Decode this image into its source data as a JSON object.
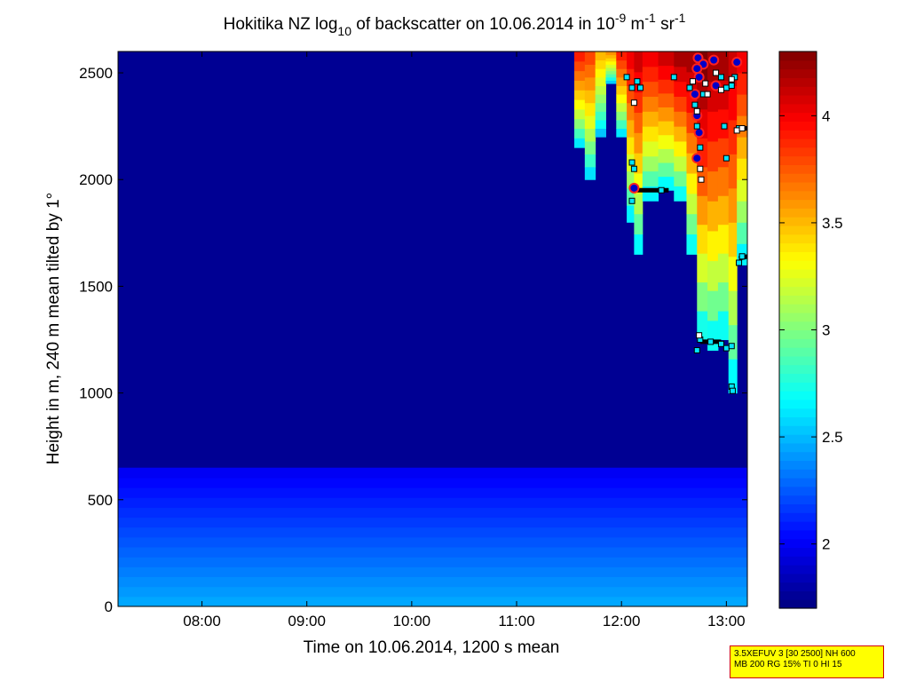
{
  "chart_data": {
    "type": "heatmap",
    "title": "Hokitika NZ log",
    "title_sub": "10",
    "title_rest": " of backscatter on 10.06.2014 in 10",
    "title_exp1": "-9",
    "title_unit1": " m",
    "title_exp2": "-1",
    "title_unit2": " sr",
    "title_exp3": "-1",
    "xlabel": "Time on 10.06.2014, 1200 s mean",
    "ylabel": "Height in m, 240 m mean tilted by 1°",
    "x_ticks": [
      "08:00",
      "09:00",
      "10:00",
      "11:00",
      "12:00",
      "13:00"
    ],
    "x_tick_hours": [
      8,
      9,
      10,
      11,
      12,
      13
    ],
    "xlim_hours": [
      7.2,
      13.2
    ],
    "y_ticks": [
      "0",
      "500",
      "1000",
      "1500",
      "2000",
      "2500"
    ],
    "y_tick_values": [
      0,
      500,
      1000,
      1500,
      2000,
      2500
    ],
    "ylim": [
      0,
      2600
    ],
    "colorbar": {
      "ticks": [
        "2",
        "2.5",
        "3",
        "3.5",
        "4"
      ],
      "tick_values": [
        2,
        2.5,
        3,
        3.5,
        4
      ],
      "range": [
        1.7,
        4.3
      ],
      "colormap": "jet"
    },
    "field": {
      "background_value": 1.75,
      "surface_layer": {
        "top_m": 650,
        "value_bottom": 2.45,
        "value_top": 2.0
      },
      "cloud_base_hour": 11.45,
      "cloud_columns": [
        {
          "hour": 11.45,
          "base_m": 2600,
          "top_value": 3.6
        },
        {
          "hour": 11.55,
          "base_m": 2150,
          "top_value": 3.9
        },
        {
          "hour": 11.65,
          "base_m": 2000,
          "top_value": 3.8
        },
        {
          "hour": 11.75,
          "base_m": 2200,
          "top_value": 3.5
        },
        {
          "hour": 11.85,
          "base_m": 2450,
          "top_value": 3.6
        },
        {
          "hour": 11.95,
          "base_m": 2200,
          "top_value": 3.9
        },
        {
          "hour": 12.05,
          "base_m": 1800,
          "top_value": 4.0
        },
        {
          "hour": 12.12,
          "base_m": 1650,
          "top_value": 4.1
        },
        {
          "hour": 12.2,
          "base_m": 1900,
          "top_value": 4.0
        },
        {
          "hour": 12.35,
          "base_m": 1950,
          "top_value": 4.1
        },
        {
          "hour": 12.5,
          "base_m": 1900,
          "top_value": 4.2
        },
        {
          "hour": 12.62,
          "base_m": 1650,
          "top_value": 4.2
        },
        {
          "hour": 12.72,
          "base_m": 1250,
          "top_value": 4.3
        },
        {
          "hour": 12.82,
          "base_m": 1200,
          "top_value": 4.2
        },
        {
          "hour": 12.92,
          "base_m": 1250,
          "top_value": 4.2
        },
        {
          "hour": 13.02,
          "base_m": 1000,
          "top_value": 4.1
        },
        {
          "hour": 13.1,
          "base_m": 1600,
          "top_value": 4.0
        },
        {
          "hour": 13.2,
          "base_m": 1650,
          "top_value": 3.9
        }
      ]
    },
    "markers": {
      "cyan_squares": [
        [
          12.05,
          2480
        ],
        [
          12.1,
          2430
        ],
        [
          12.15,
          2460
        ],
        [
          12.18,
          2430
        ],
        [
          12.1,
          2080
        ],
        [
          12.12,
          2050
        ],
        [
          12.1,
          1900
        ],
        [
          12.5,
          2480
        ],
        [
          12.65,
          2430
        ],
        [
          12.7,
          2350
        ],
        [
          12.72,
          2250
        ],
        [
          12.75,
          2150
        ],
        [
          12.78,
          2400
        ],
        [
          12.95,
          2480
        ],
        [
          13.0,
          2430
        ],
        [
          13.05,
          2440
        ],
        [
          13.08,
          2480
        ],
        [
          12.98,
          2250
        ],
        [
          13.0,
          2100
        ],
        [
          13.12,
          2240
        ],
        [
          13.15,
          1640
        ],
        [
          13.12,
          1610
        ],
        [
          12.72,
          1200
        ],
        [
          12.75,
          1250
        ],
        [
          12.85,
          1240
        ],
        [
          12.95,
          1230
        ],
        [
          13.0,
          1210
        ],
        [
          13.05,
          1220
        ],
        [
          13.05,
          1030
        ],
        [
          13.06,
          1010
        ],
        [
          12.38,
          1950
        ]
      ],
      "white_squares": [
        [
          12.12,
          2360
        ],
        [
          12.68,
          2460
        ],
        [
          12.72,
          2320
        ],
        [
          12.75,
          2050
        ],
        [
          12.76,
          2000
        ],
        [
          12.8,
          2450
        ],
        [
          12.82,
          2400
        ],
        [
          12.9,
          2500
        ],
        [
          12.95,
          2420
        ],
        [
          13.05,
          2470
        ],
        [
          13.1,
          2230
        ],
        [
          13.15,
          2240
        ],
        [
          12.74,
          1270
        ]
      ],
      "circles": [
        [
          12.73,
          2570
        ],
        [
          12.78,
          2540
        ],
        [
          12.88,
          2560
        ],
        [
          13.1,
          2550
        ],
        [
          12.72,
          2520
        ],
        [
          12.74,
          2480
        ],
        [
          12.7,
          2400
        ],
        [
          12.72,
          2300
        ],
        [
          12.74,
          2220
        ],
        [
          12.72,
          2100
        ],
        [
          12.12,
          1960
        ],
        [
          12.9,
          2440
        ]
      ],
      "black_segments": [
        [
          [
            12.15,
            1950
          ],
          [
            12.45,
            1950
          ]
        ],
        [
          [
            12.75,
            1240
          ],
          [
            12.95,
            1240
          ]
        ],
        [
          [
            13.1,
            2240
          ],
          [
            13.2,
            2240
          ]
        ],
        [
          [
            13.12,
            1630
          ],
          [
            13.2,
            1640
          ]
        ]
      ]
    }
  },
  "info_box": {
    "line1": "3.5XEFUV 3 [30 2500] NH 600",
    "line2": "MB 200 RG 15% TI 0 HI 15"
  }
}
